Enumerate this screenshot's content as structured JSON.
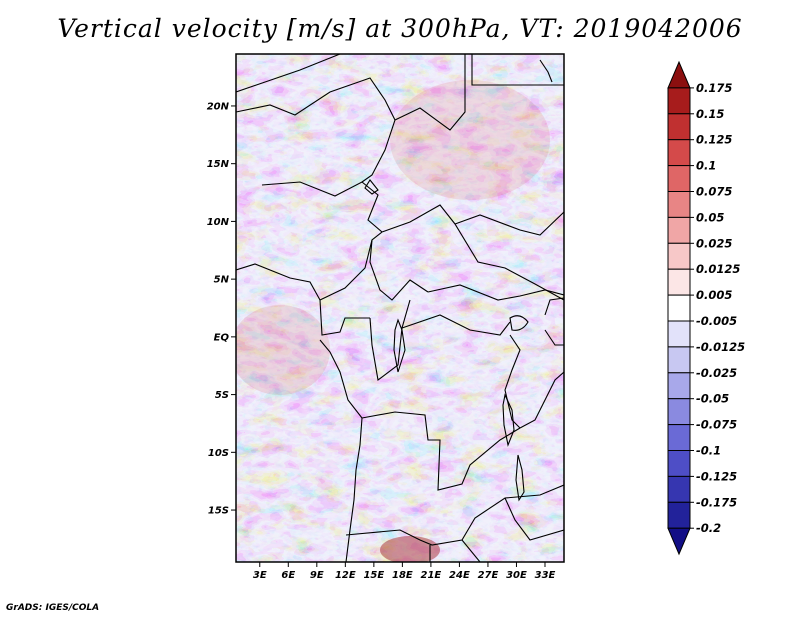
{
  "title": "Vertical velocity [m/s] at 300hPa, VT: 2019042006",
  "footer": "GrADS: IGES/COLA",
  "map": {
    "variable": "Vertical velocity",
    "units": "m/s",
    "level": "300hPa",
    "valid_time": "2019042006",
    "lat_labels": [
      "20N",
      "15N",
      "10N",
      "5N",
      "EQ",
      "5S",
      "10S",
      "15S"
    ],
    "lon_labels": [
      "3E",
      "6E",
      "9E",
      "12E",
      "15E",
      "18E",
      "21E",
      "24E",
      "27E",
      "30E",
      "33E"
    ],
    "lat_values": [
      20,
      15,
      10,
      5,
      0,
      -5,
      -10,
      -15
    ],
    "lon_values": [
      3,
      6,
      9,
      12,
      15,
      18,
      21,
      24,
      27,
      30,
      33
    ],
    "lon_range": [
      0.5,
      35
    ],
    "lat_range": [
      -19.5,
      24.5
    ]
  },
  "colorbar": {
    "labels": [
      "0.175",
      "0.15",
      "0.125",
      "0.1",
      "0.075",
      "0.05",
      "0.025",
      "0.0125",
      "0.005",
      "-0.005",
      "-0.0125",
      "-0.025",
      "-0.05",
      "-0.075",
      "-0.1",
      "-0.125",
      "-0.175",
      "-0.2"
    ],
    "colors": [
      "#8b0f0f",
      "#a71c1c",
      "#c03030",
      "#d44a4a",
      "#df6666",
      "#e88585",
      "#f0a6a6",
      "#f7c8c8",
      "#fce6e6",
      "#ffffff",
      "#e2e2fa",
      "#c8c8f2",
      "#a8a8ea",
      "#8a8ae0",
      "#6a6ad6",
      "#4e4ec6",
      "#3636b0",
      "#22229a",
      "#120e86"
    ]
  }
}
